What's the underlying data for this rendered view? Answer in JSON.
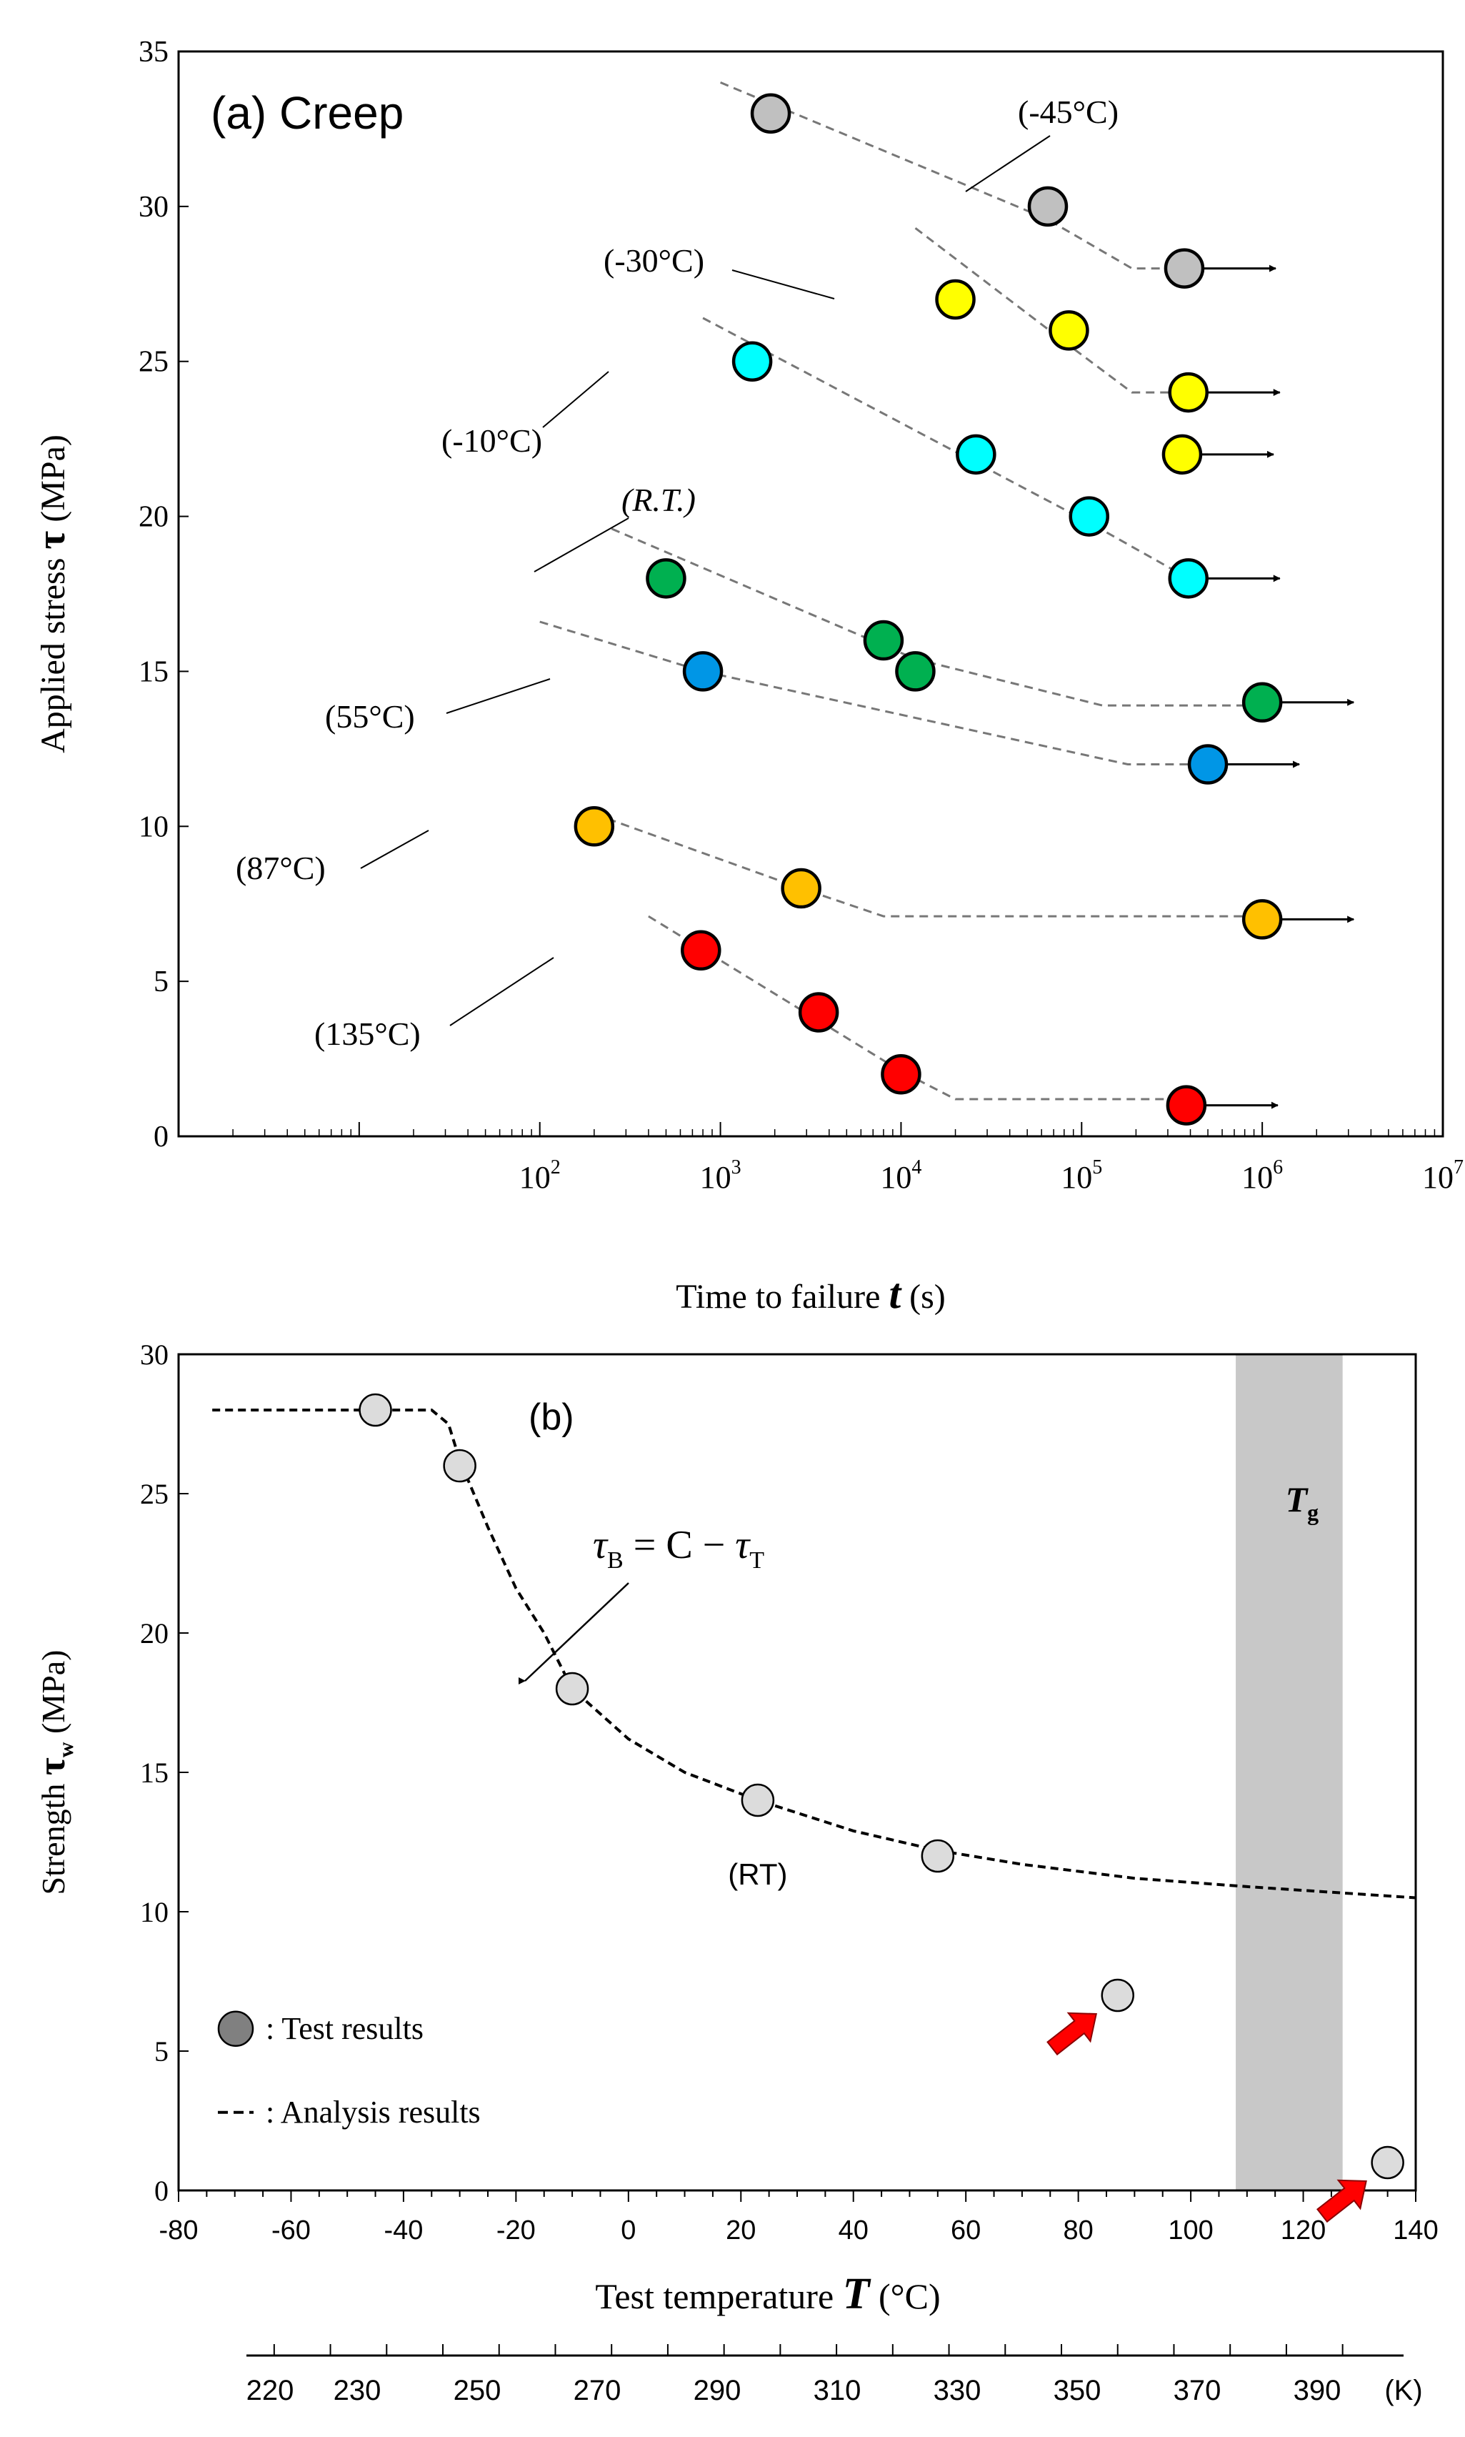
{
  "chart_data": [
    {
      "id": "a",
      "type": "scatter",
      "title": "(a) Creep",
      "xlabel": "Time to failure",
      "xlabel_symbol": "t",
      "xlabel_unit": "(s)",
      "ylabel": "Applied stress",
      "ylabel_symbol": "τ",
      "ylabel_unit": "(MPa)",
      "xscale": "log",
      "xlim": [
        1,
        10000000
      ],
      "ylim": [
        0,
        35
      ],
      "yticks": [
        "0",
        "5",
        "10",
        "15",
        "20",
        "25",
        "30",
        "35"
      ],
      "xticks": [
        {
          "base": "10",
          "exp": "2"
        },
        {
          "base": "10",
          "exp": "3"
        },
        {
          "base": "10",
          "exp": "4"
        },
        {
          "base": "10",
          "exp": "5"
        },
        {
          "base": "10",
          "exp": "6"
        },
        {
          "base": "10",
          "exp": "7"
        }
      ],
      "series": [
        {
          "name": "(-45°C)",
          "color": "#c0c0c0",
          "label_style": "normal",
          "points": [
            [
              1900,
              33
            ],
            [
              65000,
              30
            ]
          ],
          "runouts": [
            [
              370000,
              28
            ]
          ],
          "fit": [
            [
              1000,
              34
            ],
            [
              64000,
              29.6
            ],
            [
              190000,
              28
            ],
            [
              370000,
              28
            ]
          ]
        },
        {
          "name": "(-30°C)",
          "color": "#ffff00",
          "label_style": "normal",
          "points": [
            [
              20000,
              27
            ],
            [
              85000,
              26
            ]
          ],
          "runouts": [
            [
              390000,
              24
            ],
            [
              360000,
              22
            ]
          ],
          "fit": [
            [
              12000,
              29.3
            ],
            [
              86000,
              25.5
            ],
            [
              190000,
              24
            ],
            [
              390000,
              24
            ]
          ]
        },
        {
          "name": "(-10°C)",
          "color": "#00ffff",
          "label_style": "normal",
          "points": [
            [
              1500,
              25
            ],
            [
              26000,
              22
            ],
            [
              110000,
              20
            ]
          ],
          "runouts": [
            [
              390000,
              18
            ]
          ],
          "fit": [
            [
              800,
              26.4
            ],
            [
              110000,
              19.8
            ],
            [
              390000,
              18
            ]
          ]
        },
        {
          "name": "(R.T.)",
          "color": "#00b050",
          "label_style": "italic",
          "points": [
            [
              500,
              18
            ],
            [
              8000,
              16
            ],
            [
              12000,
              15
            ]
          ],
          "runouts": [
            [
              1000000,
              14
            ]
          ],
          "fit": [
            [
              250,
              19.6
            ],
            [
              12000,
              15.4
            ],
            [
              130000,
              13.9
            ],
            [
              1000000,
              13.9
            ]
          ]
        },
        {
          "name": "(55°C)",
          "color": "#0096e6",
          "label_style": "normal",
          "points": [
            [
              800,
              15
            ]
          ],
          "runouts": [
            [
              500000,
              12
            ]
          ],
          "fit": [
            [
              100,
              16.6
            ],
            [
              800,
              15
            ],
            [
              180000,
              12
            ],
            [
              500000,
              12
            ]
          ]
        },
        {
          "name": "(87°C)",
          "color": "#ffc000",
          "label_style": "normal",
          "points": [
            [
              200,
              10
            ],
            [
              2800,
              8
            ]
          ],
          "runouts": [
            [
              1000000,
              7
            ]
          ],
          "fit": [
            [
              200,
              10.4
            ],
            [
              2800,
              8
            ],
            [
              8000,
              7.1
            ],
            [
              1000000,
              7.1
            ]
          ]
        },
        {
          "name": "(135°C)",
          "color": "#ff0000",
          "label_style": "normal",
          "points": [
            [
              780,
              6
            ],
            [
              3500,
              4
            ],
            [
              10000,
              2
            ]
          ],
          "runouts": [
            [
              380000,
              1
            ]
          ],
          "fit": [
            [
              400,
              7.1
            ],
            [
              10000,
              2.1
            ],
            [
              20000,
              1.2
            ],
            [
              380000,
              1.2
            ]
          ]
        }
      ]
    },
    {
      "id": "b",
      "type": "scatter",
      "title": "(b)",
      "xlabel": "Test temperature",
      "xlabel_symbol": "T",
      "xlabel_unit": "(°C)",
      "ylabel": "Strength",
      "ylabel_symbol": "τ",
      "ylabel_sub": "w",
      "ylabel_unit": "(MPa)",
      "xlim": [
        -80,
        140
      ],
      "ylim": [
        0,
        30
      ],
      "xticks": [
        "-80",
        "-60",
        "-40",
        "-20",
        "0",
        "20",
        "40",
        "60",
        "80",
        "100",
        "120",
        "140"
      ],
      "yticks": [
        "0",
        "5",
        "10",
        "15",
        "20",
        "25",
        "30"
      ],
      "kelvin_ticks": [
        "220",
        "230",
        "250",
        "270",
        "290",
        "310",
        "330",
        "350",
        "370",
        "390"
      ],
      "kelvin_unit": "(K)",
      "tg_band": {
        "from": 108,
        "to": 127,
        "label": "T",
        "label_sub": "g"
      },
      "points": [
        [
          -45,
          28
        ],
        [
          -30,
          26
        ],
        [
          -10,
          18
        ],
        [
          23,
          14
        ],
        [
          55,
          12
        ],
        [
          87,
          7
        ],
        [
          135,
          1
        ]
      ],
      "arrowed_points": [
        [
          87,
          7
        ],
        [
          135,
          1
        ]
      ],
      "rt_label": "(RT)",
      "analysis_curve": [
        [
          -74,
          28
        ],
        [
          -48,
          28
        ],
        [
          -35,
          28
        ],
        [
          -32,
          27.5
        ],
        [
          -30,
          26.2
        ],
        [
          -25,
          23.8
        ],
        [
          -20,
          21.6
        ],
        [
          -15,
          20
        ],
        [
          -10,
          18
        ],
        [
          0,
          16.2
        ],
        [
          10,
          15
        ],
        [
          23,
          14
        ],
        [
          40,
          12.9
        ],
        [
          55,
          12.2
        ],
        [
          70,
          11.7
        ],
        [
          90,
          11.2
        ],
        [
          110,
          10.9
        ],
        [
          125,
          10.7
        ],
        [
          140,
          10.5
        ]
      ],
      "equation": {
        "lhs": "τ",
        "lhs_sub": "B",
        "rhs": "= C − ",
        "rhs_sym": "τ",
        "rhs_sub": "T"
      },
      "legend": {
        "test": ":  Test results",
        "analysis": ":  Analysis results"
      }
    }
  ]
}
